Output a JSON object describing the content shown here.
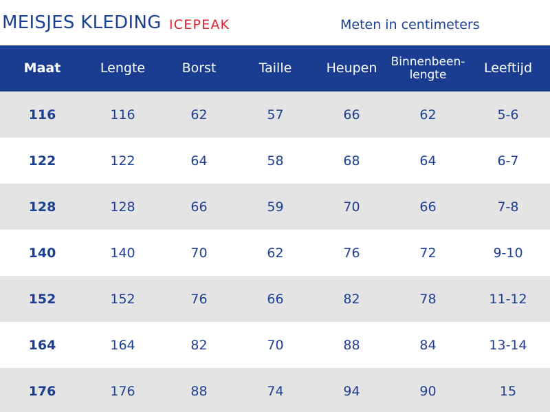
{
  "header": {
    "title": "MEISJES KLEDING",
    "brand": "ICEPEAK",
    "units": "Meten in centimeters"
  },
  "colors": {
    "navy": "#1b3d91",
    "brand_red": "#e0212e",
    "row_shade": "#e4e4e4"
  },
  "columns": [
    "Maat",
    "Lengte",
    "Borst",
    "Taille",
    "Heupen",
    "Binnenbeen-lengte",
    "Leeftijd"
  ],
  "rows": [
    [
      "116",
      "116",
      "62",
      "57",
      "66",
      "62",
      "5-6"
    ],
    [
      "122",
      "122",
      "64",
      "58",
      "68",
      "64",
      "6-7"
    ],
    [
      "128",
      "128",
      "66",
      "59",
      "70",
      "66",
      "7-8"
    ],
    [
      "140",
      "140",
      "70",
      "62",
      "76",
      "72",
      "9-10"
    ],
    [
      "152",
      "152",
      "76",
      "66",
      "82",
      "78",
      "11-12"
    ],
    [
      "164",
      "164",
      "82",
      "70",
      "88",
      "84",
      "13-14"
    ],
    [
      "176",
      "176",
      "88",
      "74",
      "94",
      "90",
      "15"
    ]
  ]
}
